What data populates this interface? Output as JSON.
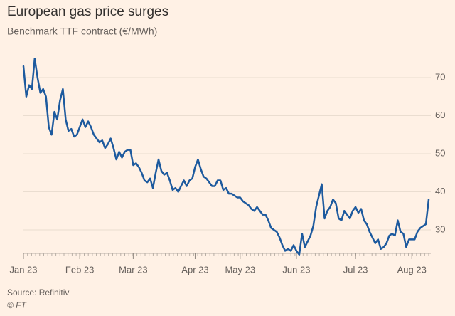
{
  "chart_data": {
    "type": "line",
    "title": "European gas price surges",
    "subtitle": "Benchmark TTF contract (€/MWh)",
    "source": "Source: Refinitiv",
    "credit": "© FT",
    "categories": [
      "Jan 23",
      null,
      null,
      null,
      null,
      null,
      null,
      null,
      null,
      null,
      null,
      null,
      null,
      null,
      null,
      null,
      null,
      null,
      null,
      null,
      "Feb 23",
      null,
      null,
      null,
      null,
      null,
      null,
      null,
      null,
      null,
      null,
      null,
      null,
      null,
      null,
      null,
      null,
      null,
      null,
      "Mar 23",
      null,
      null,
      null,
      null,
      null,
      null,
      null,
      null,
      null,
      null,
      null,
      null,
      null,
      null,
      null,
      null,
      null,
      null,
      null,
      null,
      null,
      "Apr 23",
      null,
      null,
      null,
      null,
      null,
      null,
      null,
      null,
      null,
      null,
      null,
      null,
      null,
      null,
      null,
      "May 23",
      null,
      null,
      null,
      null,
      null,
      null,
      null,
      null,
      null,
      null,
      null,
      null,
      null,
      null,
      null,
      null,
      null,
      null,
      null,
      "Jun 23",
      null,
      null,
      null,
      null,
      null,
      null,
      null,
      null,
      null,
      null,
      null,
      null,
      null,
      null,
      null,
      null,
      null,
      null,
      null,
      null,
      "Jul 23",
      null,
      null,
      null,
      null,
      null,
      null,
      null,
      null,
      null,
      null,
      null,
      null,
      null,
      null,
      null,
      null,
      null,
      null,
      null,
      "Aug 23",
      null,
      null,
      null,
      null,
      null,
      null
    ],
    "series": [
      {
        "name": "TTF",
        "color": "#1d5a9e",
        "values": [
          73,
          65,
          68,
          67,
          75,
          70,
          66,
          67,
          65,
          57,
          55,
          61,
          59,
          64,
          67,
          59,
          56,
          56.5,
          54.5,
          55,
          57,
          59,
          57,
          58.5,
          57,
          55,
          54,
          53,
          53.5,
          51.5,
          52.5,
          54,
          51.5,
          48.5,
          50.5,
          49,
          50.5,
          51,
          51,
          47,
          47.5,
          46.5,
          45,
          43,
          42.5,
          43.5,
          41,
          45,
          48.5,
          45.5,
          44.5,
          45,
          43,
          40.5,
          41,
          40,
          41.5,
          43,
          41.5,
          43,
          43.5,
          46.5,
          48.5,
          46,
          44,
          43.5,
          42.5,
          41.5,
          41.5,
          43,
          43,
          40.5,
          41,
          39.5,
          39.5,
          39,
          38.5,
          38.5,
          37.5,
          37,
          36.5,
          35.5,
          35,
          36,
          35,
          34,
          34,
          32.5,
          30.5,
          30,
          29.5,
          28,
          26,
          24.5,
          25,
          24.5,
          26,
          24.5,
          23.5,
          29,
          25.5,
          27,
          28.5,
          31,
          36,
          39,
          42,
          33,
          35,
          36,
          38,
          37,
          33,
          32.5,
          35,
          34,
          33,
          35,
          36,
          34.5,
          35.5,
          32.5,
          31.5,
          29.5,
          28,
          26.5,
          27.5,
          25,
          25.5,
          26.5,
          28.5,
          29,
          28.5,
          32.5,
          29.5,
          29,
          25.5,
          27.5,
          27.5,
          27.5,
          29.5,
          30.5,
          31,
          31.5,
          38
        ]
      }
    ],
    "ylim": [
      23,
      78
    ],
    "yticks": [
      30,
      40,
      50,
      60,
      70
    ],
    "grid": true
  }
}
